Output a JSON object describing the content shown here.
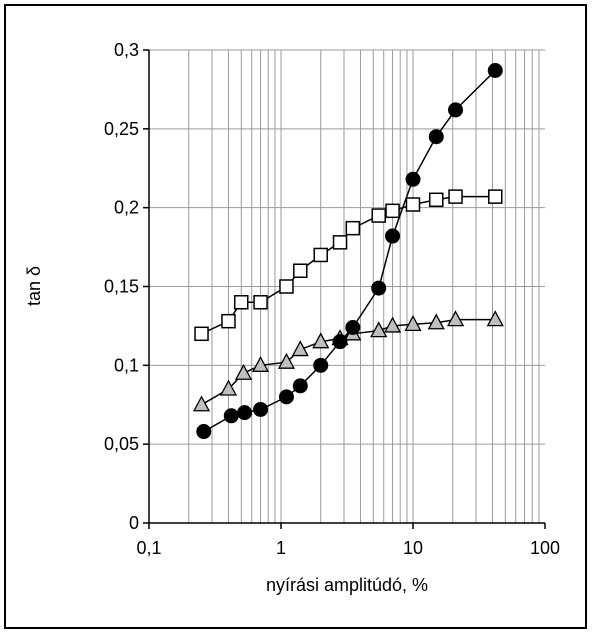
{
  "chart_data": {
    "type": "scatter",
    "xscale": "log",
    "xlabel": "nyírási amplitúdó, %",
    "ylabel": "tan δ",
    "xlim": [
      0.1,
      100
    ],
    "ylim": [
      0,
      0.3
    ],
    "x_ticks": [
      {
        "value": 0.1,
        "label": "0,1"
      },
      {
        "value": 1,
        "label": "1"
      },
      {
        "value": 10,
        "label": "10"
      },
      {
        "value": 100,
        "label": "100"
      }
    ],
    "y_ticks": [
      {
        "value": 0,
        "label": "0"
      },
      {
        "value": 0.05,
        "label": "0,05"
      },
      {
        "value": 0.1,
        "label": "0,1"
      },
      {
        "value": 0.15,
        "label": "0,15"
      },
      {
        "value": 0.2,
        "label": "0,2"
      },
      {
        "value": 0.25,
        "label": "0,25"
      },
      {
        "value": 0.3,
        "label": "0,3"
      }
    ],
    "grid": true,
    "series": [
      {
        "marker": "square-open",
        "color": "#000000",
        "fill": "#ffffff",
        "points": [
          {
            "x": 0.25,
            "y": 0.12
          },
          {
            "x": 0.4,
            "y": 0.128
          },
          {
            "x": 0.5,
            "y": 0.14
          },
          {
            "x": 0.7,
            "y": 0.14
          },
          {
            "x": 1.1,
            "y": 0.15
          },
          {
            "x": 1.4,
            "y": 0.16
          },
          {
            "x": 2.0,
            "y": 0.17
          },
          {
            "x": 2.8,
            "y": 0.178
          },
          {
            "x": 3.5,
            "y": 0.187
          },
          {
            "x": 5.5,
            "y": 0.195
          },
          {
            "x": 7.0,
            "y": 0.198
          },
          {
            "x": 10.0,
            "y": 0.202
          },
          {
            "x": 15.0,
            "y": 0.205
          },
          {
            "x": 21.0,
            "y": 0.207
          },
          {
            "x": 42.0,
            "y": 0.207
          }
        ]
      },
      {
        "marker": "triangle",
        "color": "#000000",
        "fill": "#bfbfbf",
        "points": [
          {
            "x": 0.25,
            "y": 0.075
          },
          {
            "x": 0.4,
            "y": 0.085
          },
          {
            "x": 0.52,
            "y": 0.095
          },
          {
            "x": 0.7,
            "y": 0.1
          },
          {
            "x": 1.1,
            "y": 0.102
          },
          {
            "x": 1.4,
            "y": 0.11
          },
          {
            "x": 2.0,
            "y": 0.115
          },
          {
            "x": 2.8,
            "y": 0.117
          },
          {
            "x": 3.5,
            "y": 0.12
          },
          {
            "x": 5.5,
            "y": 0.122
          },
          {
            "x": 7.0,
            "y": 0.125
          },
          {
            "x": 10.0,
            "y": 0.126
          },
          {
            "x": 15.0,
            "y": 0.127
          },
          {
            "x": 21.0,
            "y": 0.129
          },
          {
            "x": 42.0,
            "y": 0.129
          }
        ]
      },
      {
        "marker": "circle-filled",
        "color": "#000000",
        "fill": "#000000",
        "points": [
          {
            "x": 0.26,
            "y": 0.058
          },
          {
            "x": 0.42,
            "y": 0.068
          },
          {
            "x": 0.53,
            "y": 0.07
          },
          {
            "x": 0.7,
            "y": 0.072
          },
          {
            "x": 1.1,
            "y": 0.08
          },
          {
            "x": 1.4,
            "y": 0.087
          },
          {
            "x": 2.0,
            "y": 0.1
          },
          {
            "x": 2.8,
            "y": 0.115
          },
          {
            "x": 3.5,
            "y": 0.124
          },
          {
            "x": 5.5,
            "y": 0.149
          },
          {
            "x": 7.0,
            "y": 0.182
          },
          {
            "x": 10.0,
            "y": 0.218
          },
          {
            "x": 15.0,
            "y": 0.245
          },
          {
            "x": 21.0,
            "y": 0.262
          },
          {
            "x": 42.0,
            "y": 0.287
          }
        ]
      }
    ]
  }
}
